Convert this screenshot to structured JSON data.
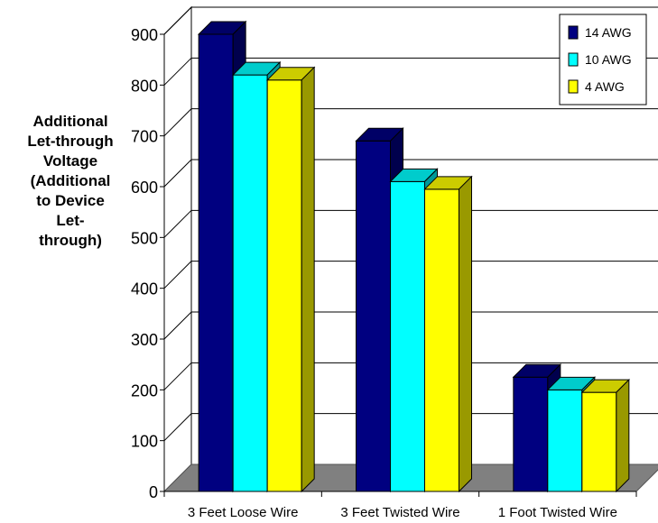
{
  "chart_data": {
    "type": "bar",
    "ylabel": "Additional\nLet-through\nVoltage\n(Additional\nto Device\nLet-\nthrough)",
    "xlabel": "",
    "title": "",
    "categories": [
      "3 Feet Loose Wire",
      "3 Feet Twisted Wire",
      "1 Foot Twisted Wire"
    ],
    "series": [
      {
        "name": "14 AWG",
        "values": [
          900,
          690,
          225
        ],
        "color": "#000080"
      },
      {
        "name": "10 AWG",
        "values": [
          820,
          610,
          200
        ],
        "color": "#00FFFF"
      },
      {
        "name": "4 AWG",
        "values": [
          810,
          595,
          195
        ],
        "color": "#FFFF00"
      }
    ],
    "ylim": [
      0,
      900
    ],
    "yticks": [
      0,
      100,
      200,
      300,
      400,
      500,
      600,
      700,
      800,
      900
    ],
    "grid": true,
    "legend_position": "top-right",
    "style": "3d-clustered-column"
  }
}
